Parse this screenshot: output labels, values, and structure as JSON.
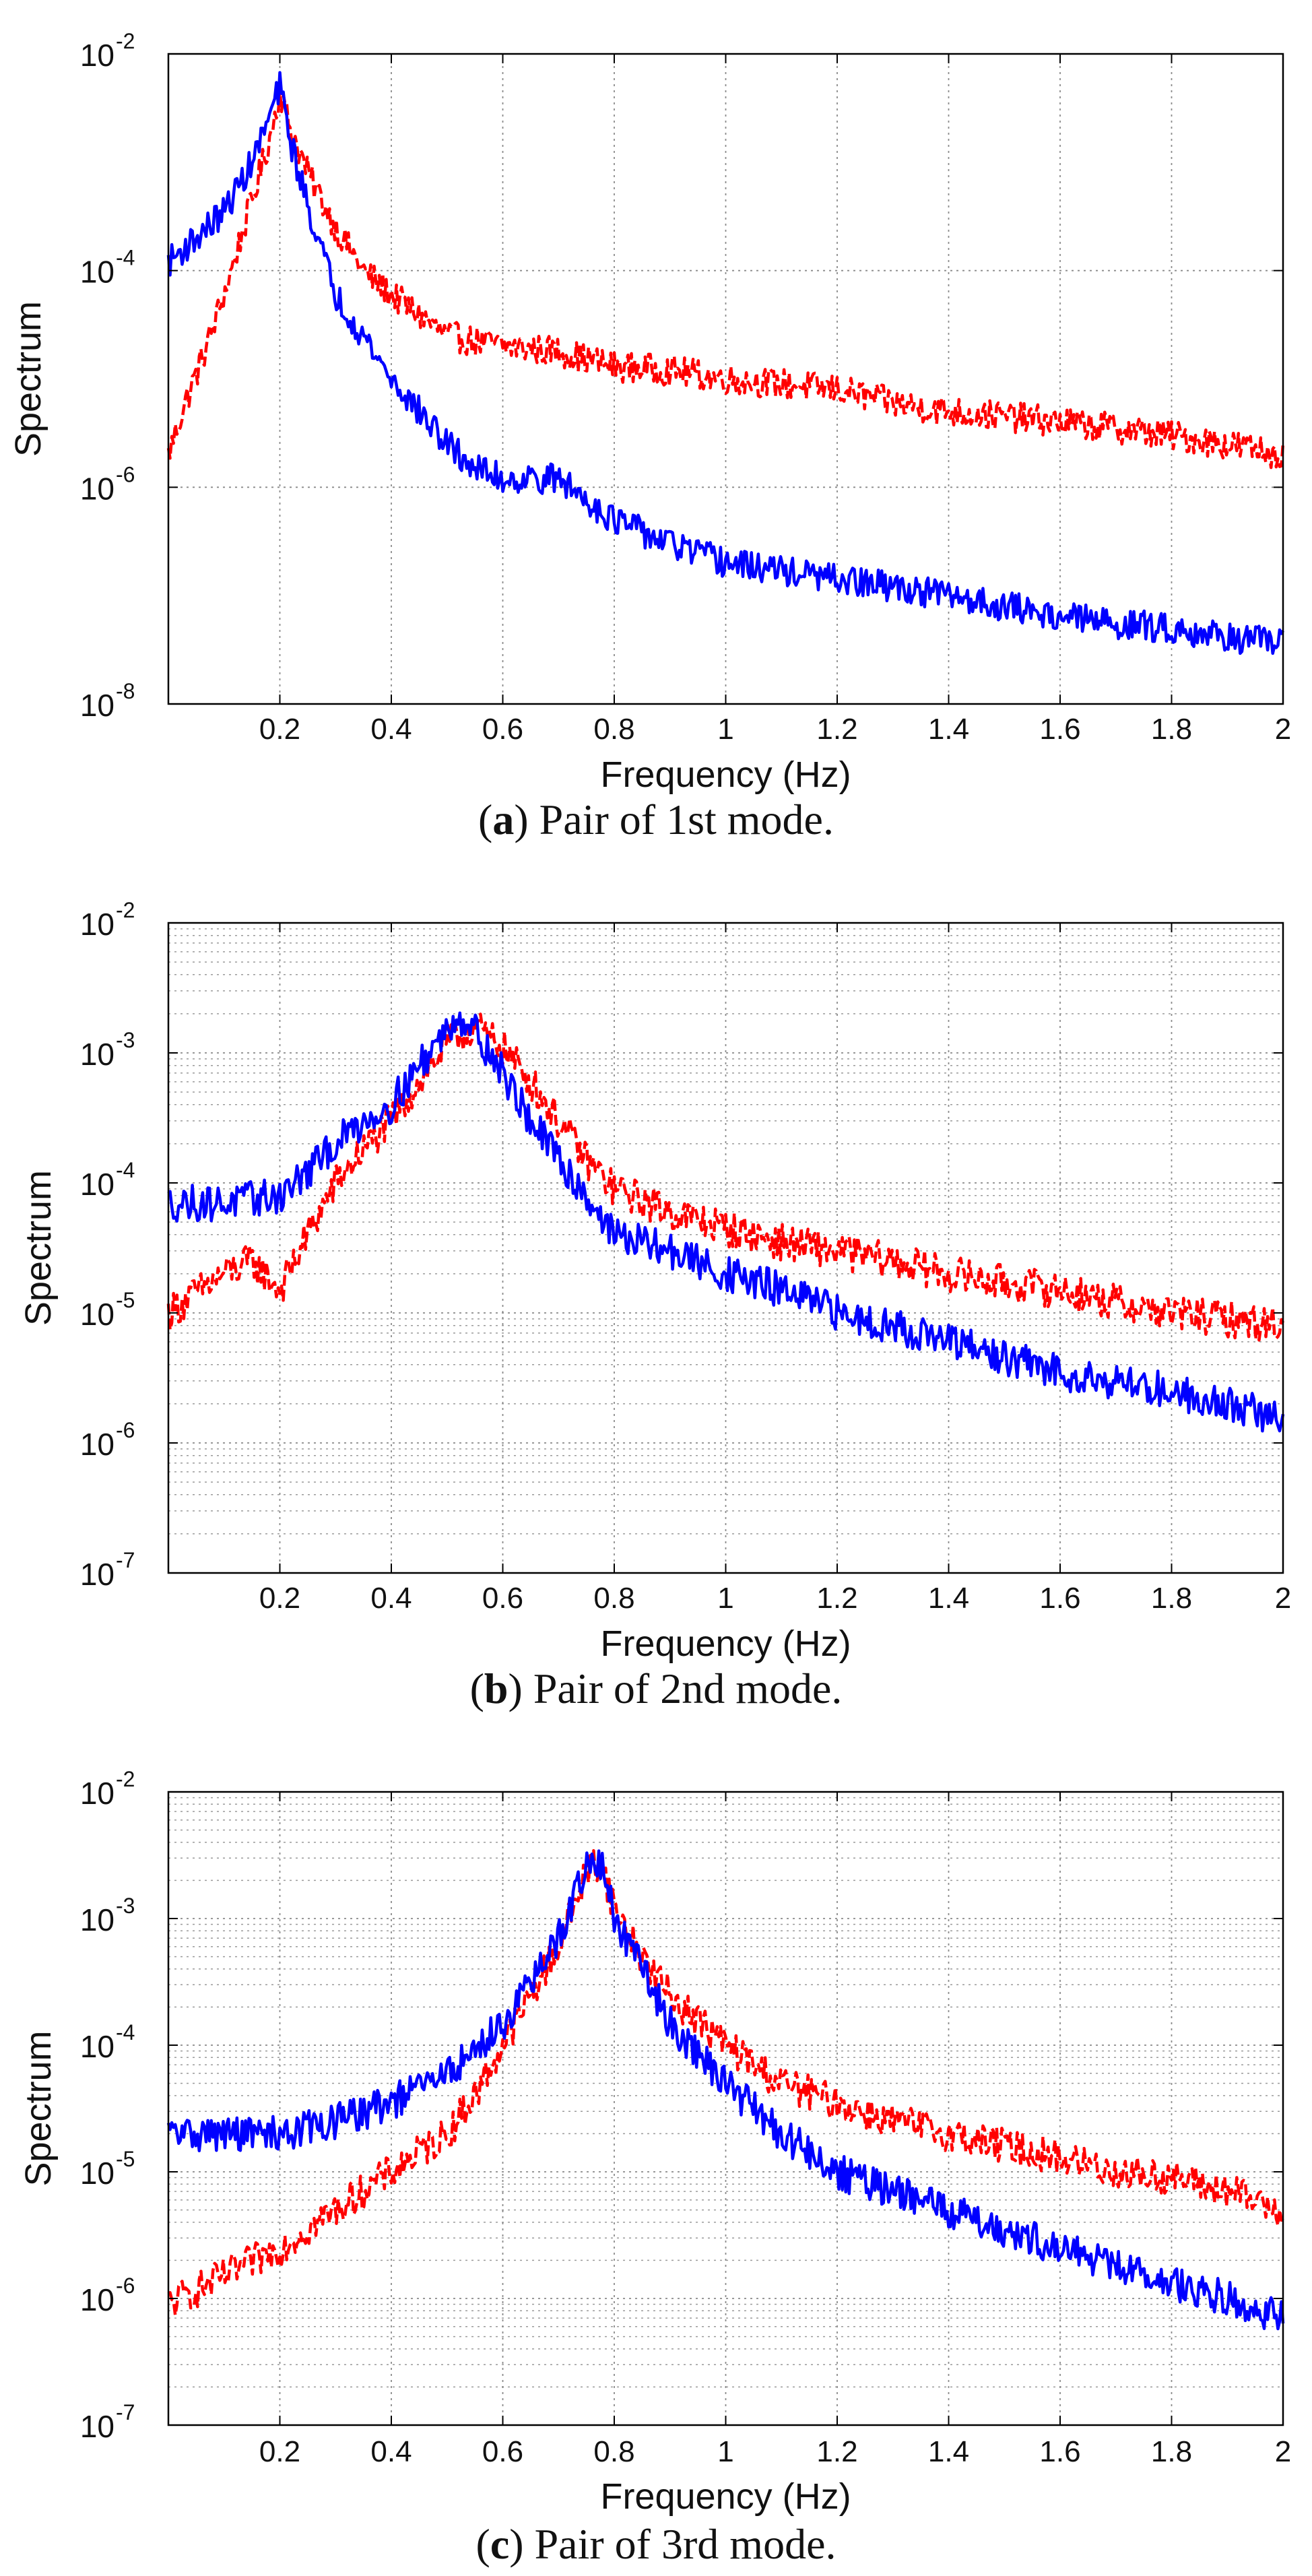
{
  "chart_data": [
    {
      "type": "line",
      "xlabel": "Frequency (Hz)",
      "ylabel": "Spectrum",
      "xlim": [
        0,
        2
      ],
      "ylim": [
        1e-08,
        0.01
      ],
      "yscale": "log",
      "grid": "major",
      "x_ticks": [
        0.2,
        0.4,
        0.6,
        0.8,
        1,
        1.2,
        1.4,
        1.6,
        1.8,
        2
      ],
      "x_tick_labels": [
        "0.2",
        "0.4",
        "0.6",
        "0.8",
        "1",
        "1.2",
        "1.4",
        "1.6",
        "1.8",
        "2"
      ],
      "y_ticks": [
        1e-08,
        1e-06,
        0.0001,
        0.01
      ],
      "y_tick_labels": [
        {
          "base": "10",
          "exp": "-8"
        },
        {
          "base": "10",
          "exp": "-6"
        },
        {
          "base": "10",
          "exp": "-4"
        },
        {
          "base": "10",
          "exp": "-2"
        }
      ],
      "caption": {
        "letter": "a",
        "text": "Pair of 1st mode."
      },
      "series": [
        {
          "name": "solid",
          "color": "#0000ff",
          "style": "solid",
          "x": [
            0,
            0.05,
            0.1,
            0.15,
            0.18,
            0.2,
            0.22,
            0.25,
            0.3,
            0.35,
            0.4,
            0.45,
            0.5,
            0.55,
            0.6,
            0.7,
            0.8,
            0.9,
            1.0,
            1.1,
            1.2,
            1.3,
            1.4,
            1.5,
            1.6,
            1.7,
            1.8,
            1.9,
            2.0
          ],
          "y": [
            0.00012,
            0.0002,
            0.00035,
            0.001,
            0.0025,
            0.005,
            0.0015,
            0.0004,
            6e-05,
            2.5e-05,
            1e-05,
            5e-06,
            2.5e-06,
            1.5e-06,
            1.2e-06,
            1.2e-06,
            5e-07,
            3e-07,
            2e-07,
            1.7e-07,
            1.4e-07,
            1.2e-07,
            1e-07,
            8e-08,
            6.5e-08,
            5.5e-08,
            5e-08,
            4.2e-08,
            3.5e-08
          ]
        },
        {
          "name": "dashed",
          "color": "#ff0000",
          "style": "dashed",
          "x": [
            0,
            0.03,
            0.06,
            0.1,
            0.14,
            0.18,
            0.2,
            0.22,
            0.25,
            0.3,
            0.35,
            0.4,
            0.5,
            0.6,
            0.7,
            0.8,
            0.9,
            1.0,
            1.1,
            1.2,
            1.3,
            1.4,
            1.5,
            1.6,
            1.7,
            1.8,
            1.9,
            2.0
          ],
          "y": [
            2e-06,
            6e-06,
            1.5e-05,
            6e-05,
            0.0003,
            0.0015,
            0.0045,
            0.002,
            0.0008,
            0.00025,
            0.0001,
            6e-05,
            2.5e-05,
            2e-05,
            1.8e-05,
            1.3e-05,
            1.2e-05,
            1e-05,
            9e-06,
            8e-06,
            6e-06,
            5e-06,
            4.5e-06,
            4e-06,
            3.5e-06,
            3e-06,
            2.5e-06,
            2e-06
          ]
        }
      ]
    },
    {
      "type": "line",
      "xlabel": "Frequency (Hz)",
      "ylabel": "Spectrum",
      "xlim": [
        0,
        2
      ],
      "ylim": [
        1e-07,
        0.01
      ],
      "yscale": "log",
      "grid": "major+minor",
      "x_ticks": [
        0.2,
        0.4,
        0.6,
        0.8,
        1,
        1.2,
        1.4,
        1.6,
        1.8,
        2
      ],
      "x_tick_labels": [
        "0.2",
        "0.4",
        "0.6",
        "0.8",
        "1",
        "1.2",
        "1.4",
        "1.6",
        "1.8",
        "2"
      ],
      "y_ticks": [
        1e-07,
        1e-06,
        1e-05,
        0.0001,
        0.001,
        0.01
      ],
      "y_tick_labels": [
        {
          "base": "10",
          "exp": "-7"
        },
        {
          "base": "10",
          "exp": "-6"
        },
        {
          "base": "10",
          "exp": "-5"
        },
        {
          "base": "10",
          "exp": "-4"
        },
        {
          "base": "10",
          "exp": "-3"
        },
        {
          "base": "10",
          "exp": "-2"
        }
      ],
      "caption": {
        "letter": "b",
        "text": "Pair of 2nd mode."
      },
      "series": [
        {
          "name": "solid",
          "color": "#0000ff",
          "style": "solid",
          "x": [
            0,
            0.1,
            0.2,
            0.25,
            0.3,
            0.35,
            0.4,
            0.45,
            0.5,
            0.52,
            0.55,
            0.6,
            0.65,
            0.7,
            0.75,
            0.8,
            0.9,
            1.0,
            1.1,
            1.2,
            1.3,
            1.4,
            1.5,
            1.6,
            1.7,
            1.8,
            1.9,
            2.0
          ],
          "y": [
            7e-05,
            7e-05,
            8e-05,
            0.00012,
            0.0002,
            0.0003,
            0.0004,
            0.0008,
            0.0015,
            0.002,
            0.0015,
            0.0007,
            0.0003,
            0.00015,
            8e-05,
            4e-05,
            3e-05,
            2e-05,
            1.5e-05,
            1e-05,
            8e-06,
            6e-06,
            4.5e-06,
            3.5e-06,
            3e-06,
            2.5e-06,
            2e-06,
            1.5e-06
          ]
        },
        {
          "name": "dashed",
          "color": "#ff0000",
          "style": "dashed",
          "x": [
            0,
            0.1,
            0.15,
            0.2,
            0.25,
            0.3,
            0.35,
            0.4,
            0.45,
            0.5,
            0.55,
            0.6,
            0.65,
            0.7,
            0.75,
            0.8,
            0.9,
            1.0,
            1.1,
            1.2,
            1.3,
            1.4,
            1.5,
            1.6,
            1.7,
            1.8,
            1.9,
            2.0
          ],
          "y": [
            1e-05,
            2e-05,
            2.5e-05,
            1.5e-05,
            4e-05,
            0.0001,
            0.00018,
            0.0003,
            0.0006,
            0.0012,
            0.0016,
            0.0011,
            0.0006,
            0.0003,
            0.00015,
            9e-05,
            6e-05,
            4.5e-05,
            3.5e-05,
            3e-05,
            2.5e-05,
            2e-05,
            1.7e-05,
            1.5e-05,
            1.2e-05,
            1e-05,
            9e-06,
            8e-06
          ]
        }
      ]
    },
    {
      "type": "line",
      "xlabel": "Frequency (Hz)",
      "ylabel": "Spectrum",
      "xlim": [
        0,
        2
      ],
      "ylim": [
        1e-07,
        0.01
      ],
      "yscale": "log",
      "grid": "major+minor",
      "x_ticks": [
        0.2,
        0.4,
        0.6,
        0.8,
        1,
        1.2,
        1.4,
        1.6,
        1.8,
        2
      ],
      "x_tick_labels": [
        "0.2",
        "0.4",
        "0.6",
        "0.8",
        "1",
        "1.2",
        "1.4",
        "1.6",
        "1.8",
        "2"
      ],
      "y_ticks": [
        1e-07,
        1e-06,
        1e-05,
        0.0001,
        0.001,
        0.01
      ],
      "y_tick_labels": [
        {
          "base": "10",
          "exp": "-7"
        },
        {
          "base": "10",
          "exp": "-6"
        },
        {
          "base": "10",
          "exp": "-5"
        },
        {
          "base": "10",
          "exp": "-4"
        },
        {
          "base": "10",
          "exp": "-3"
        },
        {
          "base": "10",
          "exp": "-2"
        }
      ],
      "caption": {
        "letter": "c",
        "text": "Pair of 3rd mode."
      },
      "series": [
        {
          "name": "solid",
          "color": "#0000ff",
          "style": "solid",
          "x": [
            0,
            0.1,
            0.2,
            0.3,
            0.4,
            0.5,
            0.55,
            0.6,
            0.65,
            0.7,
            0.74,
            0.76,
            0.78,
            0.8,
            0.85,
            0.9,
            1.0,
            1.1,
            1.2,
            1.3,
            1.4,
            1.5,
            1.6,
            1.7,
            1.8,
            1.9,
            2.0
          ],
          "y": [
            2e-05,
            2e-05,
            2e-05,
            2.5e-05,
            3.5e-05,
            6e-05,
            9e-05,
            0.00015,
            0.0003,
            0.0007,
            0.002,
            0.003,
            0.0025,
            0.001,
            0.0004,
            0.00015,
            5e-05,
            2e-05,
            1e-05,
            7e-06,
            5e-06,
            3.5e-06,
            2.5e-06,
            1.8e-06,
            1.3e-06,
            1e-06,
            7e-07
          ]
        },
        {
          "name": "dashed",
          "color": "#ff0000",
          "style": "dashed",
          "x": [
            0,
            0.1,
            0.2,
            0.3,
            0.4,
            0.5,
            0.55,
            0.6,
            0.65,
            0.7,
            0.74,
            0.76,
            0.78,
            0.8,
            0.85,
            0.9,
            1.0,
            1.1,
            1.2,
            1.3,
            1.4,
            1.5,
            1.6,
            1.7,
            1.8,
            1.9,
            2.0
          ],
          "y": [
            9e-07,
            1.5e-06,
            2.5e-06,
            5e-06,
            1e-05,
            2e-05,
            4e-05,
            0.0001,
            0.00025,
            0.0006,
            0.0018,
            0.0028,
            0.0025,
            0.0012,
            0.0005,
            0.00025,
            0.0001,
            5e-05,
            3.5e-05,
            2.5e-05,
            2e-05,
            1.6e-05,
            1.3e-05,
            1e-05,
            9e-06,
            7e-06,
            5e-06
          ]
        }
      ]
    }
  ]
}
